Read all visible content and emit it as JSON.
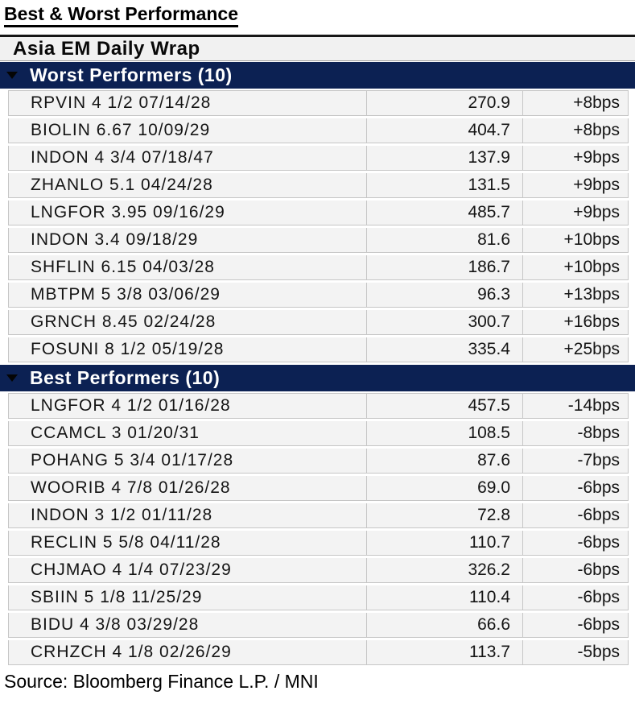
{
  "chart_data": {
    "type": "table",
    "title": "Best & Worst Performance",
    "subtitle": "Asia EM Daily Wrap",
    "columns": [
      "security",
      "value",
      "change_bps"
    ],
    "sections": [
      {
        "label": "Worst Performers (10)",
        "rows": [
          {
            "name": "RPVIN 4 1/2 07/14/28",
            "value": "270.9",
            "change": "+8bps"
          },
          {
            "name": "BIOLIN 6.67 10/09/29",
            "value": "404.7",
            "change": "+8bps"
          },
          {
            "name": "INDON 4 3/4 07/18/47",
            "value": "137.9",
            "change": "+9bps"
          },
          {
            "name": "ZHANLO 5.1 04/24/28",
            "value": "131.5",
            "change": "+9bps"
          },
          {
            "name": "LNGFOR 3.95 09/16/29",
            "value": "485.7",
            "change": "+9bps"
          },
          {
            "name": "INDON 3.4 09/18/29",
            "value": "81.6",
            "change": "+10bps"
          },
          {
            "name": "SHFLIN 6.15 04/03/28",
            "value": "186.7",
            "change": "+10bps"
          },
          {
            "name": "MBTPM 5 3/8 03/06/29",
            "value": "96.3",
            "change": "+13bps"
          },
          {
            "name": "GRNCH 8.45 02/24/28",
            "value": "300.7",
            "change": "+16bps"
          },
          {
            "name": "FOSUNI 8 1/2 05/19/28",
            "value": "335.4",
            "change": "+25bps"
          }
        ]
      },
      {
        "label": "Best Performers (10)",
        "rows": [
          {
            "name": "LNGFOR 4 1/2 01/16/28",
            "value": "457.5",
            "change": "-14bps"
          },
          {
            "name": "CCAMCL 3 01/20/31",
            "value": "108.5",
            "change": "-8bps"
          },
          {
            "name": "POHANG 5 3/4 01/17/28",
            "value": "87.6",
            "change": "-7bps"
          },
          {
            "name": "WOORIB 4 7/8 01/26/28",
            "value": "69.0",
            "change": "-6bps"
          },
          {
            "name": "INDON 3 1/2 01/11/28",
            "value": "72.8",
            "change": "-6bps"
          },
          {
            "name": "RECLIN 5 5/8 04/11/28",
            "value": "110.7",
            "change": "-6bps"
          },
          {
            "name": "CHJMAO 4 1/4 07/23/29",
            "value": "326.2",
            "change": "-6bps"
          },
          {
            "name": "SBIIN 5 1/8 11/25/29",
            "value": "110.4",
            "change": "-6bps"
          },
          {
            "name": "BIDU 4 3/8 03/29/28",
            "value": "66.6",
            "change": "-6bps"
          },
          {
            "name": "CRHZCH 4 1/8 02/26/29",
            "value": "113.7",
            "change": "-5bps"
          }
        ]
      }
    ],
    "source": "Source: Bloomberg Finance L.P. / MNI",
    "legend_position": "none",
    "grid": true
  },
  "icons": {
    "collapse_triangle": "triangle-down"
  },
  "colors": {
    "section_bar_navy": "#0c2153",
    "section_bar_text": "#ffffff",
    "row_background": "#f3f3f3",
    "subheader_background": "#f1f1f1",
    "grid_line": "#c6c6c6",
    "text": "#141414",
    "title_text": "#000000",
    "triangle": "#050505"
  }
}
